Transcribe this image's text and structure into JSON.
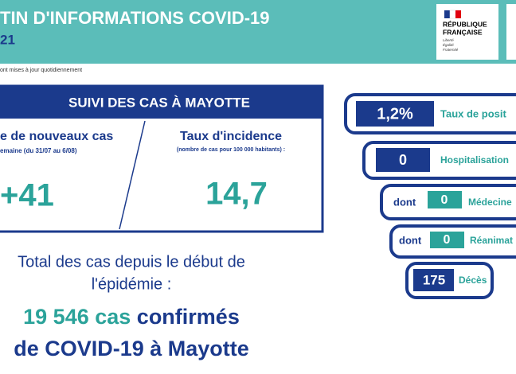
{
  "header": {
    "title": "TIN D'INFORMATIONS COVID-19",
    "subtitle": "21",
    "note": "ont mises à jour quotidiennement",
    "logo": {
      "line1": "RÉPUBLIQUE",
      "line2": "FRANÇAISE",
      "motto": [
        "Liberté",
        "Égalité",
        "Fraternité"
      ]
    }
  },
  "panel": {
    "title": "SUIVI DES CAS À MAYOTTE",
    "left": {
      "heading": "e de nouveaux cas",
      "sub": "emaine (du 31/07 au 6/08)",
      "value": "+41"
    },
    "right": {
      "heading": "Taux d'incidence",
      "sub": "(nombre de cas pour 100 000 habitants) :",
      "value": "14,7"
    }
  },
  "total": {
    "line1": "Total des cas depuis le début de",
    "line2": "l'épidémie :",
    "count": "19 546 cas",
    "count_rest": "confirmés",
    "line4": "de COVID-19 à Mayotte"
  },
  "indicators": [
    {
      "value": "1,2%",
      "label": "Taux de posit"
    },
    {
      "value": "0",
      "label": "Hospitalisation"
    },
    {
      "prefix": "dont",
      "value": "0",
      "label": "Médecine"
    },
    {
      "prefix": "dont",
      "value": "0",
      "label": "Réanimat"
    },
    {
      "value": "175",
      "label": "Décès"
    }
  ]
}
